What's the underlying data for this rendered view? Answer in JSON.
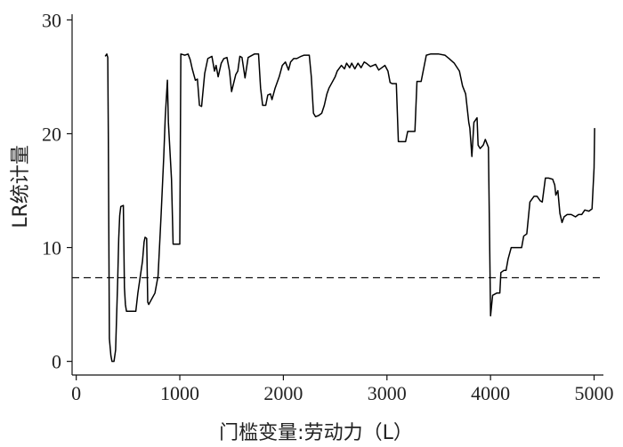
{
  "chart_data": {
    "type": "line",
    "xlabel": "门槛变量:劳动力（L）",
    "ylabel": "LR统计量",
    "xlim": [
      -40,
      5090
    ],
    "ylim": [
      -1.2,
      30.5
    ],
    "xticks": [
      0,
      1000,
      2000,
      3000,
      4000,
      5000
    ],
    "yticks": [
      0,
      10,
      20,
      30
    ],
    "grid": false,
    "reference_line": {
      "y": 7.35,
      "style": "dashed"
    },
    "series": [
      {
        "values": [
          [
            280,
            26.8
          ],
          [
            295,
            27.0
          ],
          [
            305,
            26.7
          ],
          [
            310,
            20.0
          ],
          [
            320,
            2.0
          ],
          [
            335,
            0.5
          ],
          [
            345,
            0.0
          ],
          [
            365,
            0.0
          ],
          [
            380,
            1.0
          ],
          [
            400,
            7.0
          ],
          [
            410,
            10.8
          ],
          [
            420,
            12.8
          ],
          [
            430,
            13.6
          ],
          [
            455,
            13.7
          ],
          [
            465,
            6.5
          ],
          [
            475,
            5.0
          ],
          [
            485,
            4.4
          ],
          [
            560,
            4.4
          ],
          [
            575,
            4.4
          ],
          [
            595,
            6.0
          ],
          [
            640,
            8.8
          ],
          [
            655,
            10.5
          ],
          [
            665,
            10.9
          ],
          [
            680,
            10.8
          ],
          [
            690,
            5.2
          ],
          [
            700,
            5.0
          ],
          [
            730,
            5.5
          ],
          [
            760,
            6.0
          ],
          [
            790,
            7.5
          ],
          [
            820,
            13.0
          ],
          [
            845,
            18.0
          ],
          [
            860,
            21.5
          ],
          [
            880,
            24.7
          ],
          [
            890,
            21.0
          ],
          [
            920,
            16.0
          ],
          [
            935,
            10.3
          ],
          [
            980,
            10.3
          ],
          [
            1000,
            10.3
          ],
          [
            1010,
            27.0
          ],
          [
            1050,
            26.9
          ],
          [
            1080,
            27.0
          ],
          [
            1100,
            26.5
          ],
          [
            1120,
            25.7
          ],
          [
            1150,
            24.7
          ],
          [
            1170,
            24.8
          ],
          [
            1190,
            22.5
          ],
          [
            1210,
            22.4
          ],
          [
            1240,
            25.3
          ],
          [
            1270,
            26.6
          ],
          [
            1310,
            26.8
          ],
          [
            1335,
            25.5
          ],
          [
            1350,
            26.0
          ],
          [
            1370,
            25.0
          ],
          [
            1400,
            26.2
          ],
          [
            1425,
            26.6
          ],
          [
            1455,
            26.7
          ],
          [
            1480,
            25.5
          ],
          [
            1500,
            23.7
          ],
          [
            1540,
            25.2
          ],
          [
            1560,
            25.5
          ],
          [
            1580,
            26.8
          ],
          [
            1600,
            26.7
          ],
          [
            1630,
            24.9
          ],
          [
            1660,
            26.7
          ],
          [
            1720,
            27.0
          ],
          [
            1760,
            27.0
          ],
          [
            1780,
            24.0
          ],
          [
            1800,
            22.5
          ],
          [
            1830,
            22.5
          ],
          [
            1850,
            23.4
          ],
          [
            1875,
            23.5
          ],
          [
            1890,
            23.0
          ],
          [
            1920,
            24.0
          ],
          [
            1960,
            25.0
          ],
          [
            1990,
            26.0
          ],
          [
            2020,
            26.3
          ],
          [
            2050,
            25.6
          ],
          [
            2070,
            26.3
          ],
          [
            2100,
            26.6
          ],
          [
            2130,
            26.6
          ],
          [
            2170,
            26.8
          ],
          [
            2200,
            26.9
          ],
          [
            2250,
            26.9
          ],
          [
            2270,
            25.0
          ],
          [
            2290,
            21.8
          ],
          [
            2310,
            21.5
          ],
          [
            2340,
            21.6
          ],
          [
            2370,
            21.8
          ],
          [
            2395,
            22.5
          ],
          [
            2420,
            23.5
          ],
          [
            2440,
            24.0
          ],
          [
            2470,
            24.5
          ],
          [
            2500,
            25.0
          ],
          [
            2520,
            25.5
          ],
          [
            2560,
            26.0
          ],
          [
            2590,
            25.7
          ],
          [
            2610,
            26.2
          ],
          [
            2640,
            25.8
          ],
          [
            2660,
            26.2
          ],
          [
            2690,
            25.7
          ],
          [
            2720,
            26.2
          ],
          [
            2750,
            25.8
          ],
          [
            2780,
            26.3
          ],
          [
            2800,
            26.2
          ],
          [
            2840,
            25.9
          ],
          [
            2890,
            26.1
          ],
          [
            2920,
            25.6
          ],
          [
            2950,
            25.8
          ],
          [
            2980,
            26.0
          ],
          [
            3010,
            25.5
          ],
          [
            3030,
            24.5
          ],
          [
            3050,
            24.4
          ],
          [
            3090,
            24.4
          ],
          [
            3110,
            19.3
          ],
          [
            3150,
            19.3
          ],
          [
            3180,
            19.3
          ],
          [
            3200,
            20.2
          ],
          [
            3240,
            20.2
          ],
          [
            3270,
            20.2
          ],
          [
            3290,
            24.6
          ],
          [
            3330,
            24.6
          ],
          [
            3380,
            26.9
          ],
          [
            3420,
            27.0
          ],
          [
            3460,
            27.0
          ],
          [
            3500,
            27.0
          ],
          [
            3560,
            26.9
          ],
          [
            3600,
            26.6
          ],
          [
            3650,
            26.2
          ],
          [
            3700,
            25.5
          ],
          [
            3730,
            24.2
          ],
          [
            3760,
            23.5
          ],
          [
            3790,
            21.0
          ],
          [
            3800,
            20.5
          ],
          [
            3820,
            18.0
          ],
          [
            3840,
            21.0
          ],
          [
            3870,
            21.4
          ],
          [
            3880,
            19.0
          ],
          [
            3900,
            18.7
          ],
          [
            3930,
            19.0
          ],
          [
            3950,
            19.5
          ],
          [
            3980,
            18.8
          ],
          [
            4000,
            4.0
          ],
          [
            4020,
            5.8
          ],
          [
            4060,
            6.0
          ],
          [
            4090,
            6.0
          ],
          [
            4100,
            7.8
          ],
          [
            4130,
            8.0
          ],
          [
            4150,
            8.0
          ],
          [
            4170,
            9.0
          ],
          [
            4200,
            10.0
          ],
          [
            4250,
            10.0
          ],
          [
            4300,
            10.0
          ],
          [
            4320,
            11.0
          ],
          [
            4350,
            11.2
          ],
          [
            4380,
            14.0
          ],
          [
            4420,
            14.5
          ],
          [
            4450,
            14.5
          ],
          [
            4480,
            14.1
          ],
          [
            4500,
            14.0
          ],
          [
            4530,
            16.1
          ],
          [
            4560,
            16.1
          ],
          [
            4600,
            16.0
          ],
          [
            4620,
            15.5
          ],
          [
            4630,
            14.6
          ],
          [
            4650,
            15.0
          ],
          [
            4670,
            13.0
          ],
          [
            4690,
            12.2
          ],
          [
            4710,
            12.7
          ],
          [
            4740,
            12.9
          ],
          [
            4780,
            12.9
          ],
          [
            4820,
            12.7
          ],
          [
            4850,
            12.9
          ],
          [
            4880,
            12.9
          ],
          [
            4910,
            13.3
          ],
          [
            4950,
            13.2
          ],
          [
            4980,
            13.4
          ],
          [
            5000,
            17.0
          ],
          [
            5005,
            20.5
          ]
        ]
      }
    ]
  }
}
